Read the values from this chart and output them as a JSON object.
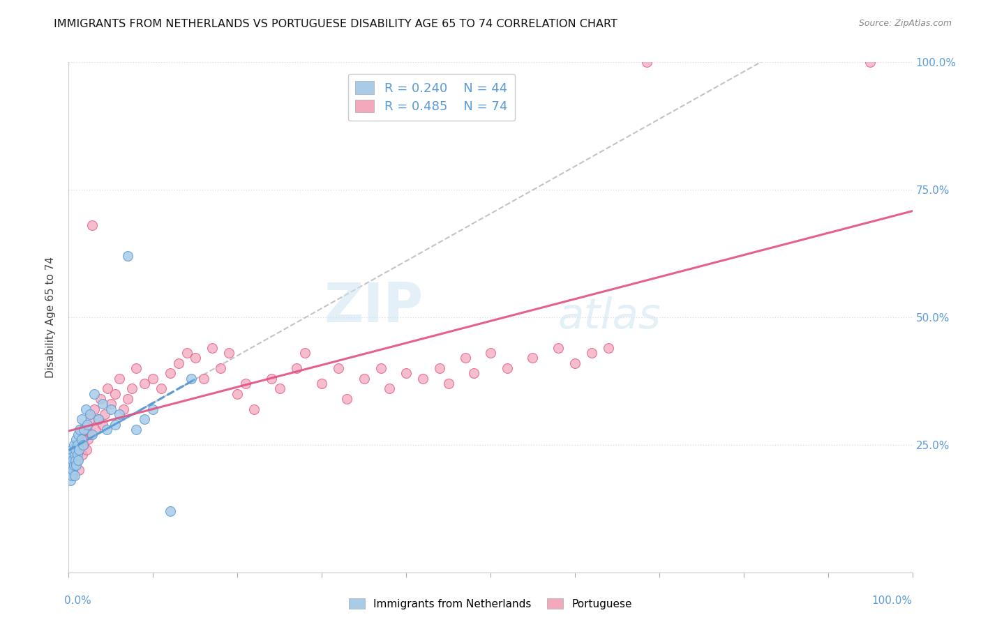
{
  "title": "IMMIGRANTS FROM NETHERLANDS VS PORTUGUESE DISABILITY AGE 65 TO 74 CORRELATION CHART",
  "source": "Source: ZipAtlas.com",
  "legend_label1": "Immigrants from Netherlands",
  "legend_label2": "Portuguese",
  "R1": 0.24,
  "N1": 44,
  "R2": 0.485,
  "N2": 74,
  "color1": "#a8cce8",
  "color2": "#f4a8bc",
  "line_color1": "#5b9bd5",
  "line_color2": "#e05080",
  "watermark_zip": "ZIP",
  "watermark_atlas": "atlas",
  "ylabel": "Disability Age 65 to 74",
  "xmin": 0.0,
  "xmax": 100.0,
  "ymin": 0.0,
  "ymax": 100.0,
  "ytick_labels": [
    "25.0%",
    "50.0%",
    "75.0%",
    "100.0%"
  ],
  "ytick_vals": [
    25,
    50,
    75,
    100
  ],
  "blue_x": [
    0.1,
    0.2,
    0.2,
    0.3,
    0.3,
    0.4,
    0.4,
    0.5,
    0.5,
    0.6,
    0.6,
    0.7,
    0.7,
    0.8,
    0.8,
    0.9,
    0.9,
    1.0,
    1.0,
    1.1,
    1.1,
    1.2,
    1.3,
    1.5,
    1.5,
    1.7,
    1.8,
    2.0,
    2.2,
    2.5,
    2.8,
    3.0,
    3.5,
    4.0,
    4.5,
    5.0,
    5.5,
    6.0,
    7.0,
    8.0,
    9.0,
    10.0,
    12.0,
    14.5
  ],
  "blue_y": [
    20,
    18,
    22,
    21,
    23,
    19,
    24,
    22,
    20,
    25,
    21,
    23,
    19,
    24,
    22,
    26,
    21,
    25,
    23,
    27,
    22,
    24,
    28,
    26,
    30,
    25,
    28,
    32,
    29,
    31,
    27,
    35,
    30,
    33,
    28,
    32,
    29,
    31,
    62,
    28,
    30,
    32,
    12,
    38
  ],
  "pink_x": [
    0.2,
    0.4,
    0.5,
    0.6,
    0.8,
    0.9,
    1.0,
    1.1,
    1.2,
    1.3,
    1.5,
    1.6,
    1.7,
    1.8,
    2.0,
    2.1,
    2.2,
    2.3,
    2.5,
    2.7,
    2.8,
    3.0,
    3.2,
    3.5,
    3.8,
    4.0,
    4.3,
    4.6,
    5.0,
    5.5,
    6.0,
    6.5,
    7.0,
    7.5,
    8.0,
    9.0,
    10.0,
    11.0,
    12.0,
    13.0,
    14.0,
    15.0,
    16.0,
    17.0,
    18.0,
    19.0,
    20.0,
    21.0,
    22.0,
    24.0,
    25.0,
    27.0,
    28.0,
    30.0,
    32.0,
    33.0,
    35.0,
    37.0,
    38.0,
    40.0,
    42.0,
    44.0,
    45.0,
    47.0,
    48.0,
    50.0,
    52.0,
    55.0,
    58.0,
    60.0,
    62.0,
    64.0,
    68.5,
    95.0
  ],
  "pink_y": [
    20,
    22,
    19,
    24,
    21,
    23,
    22,
    25,
    20,
    24,
    28,
    23,
    26,
    25,
    27,
    24,
    28,
    26,
    30,
    27,
    68,
    32,
    28,
    30,
    34,
    29,
    31,
    36,
    33,
    35,
    38,
    32,
    34,
    36,
    40,
    37,
    38,
    36,
    39,
    41,
    43,
    42,
    38,
    44,
    40,
    43,
    35,
    37,
    32,
    38,
    36,
    40,
    43,
    37,
    40,
    34,
    38,
    40,
    36,
    39,
    38,
    40,
    37,
    42,
    39,
    43,
    40,
    42,
    44,
    41,
    43,
    44,
    100,
    100
  ]
}
